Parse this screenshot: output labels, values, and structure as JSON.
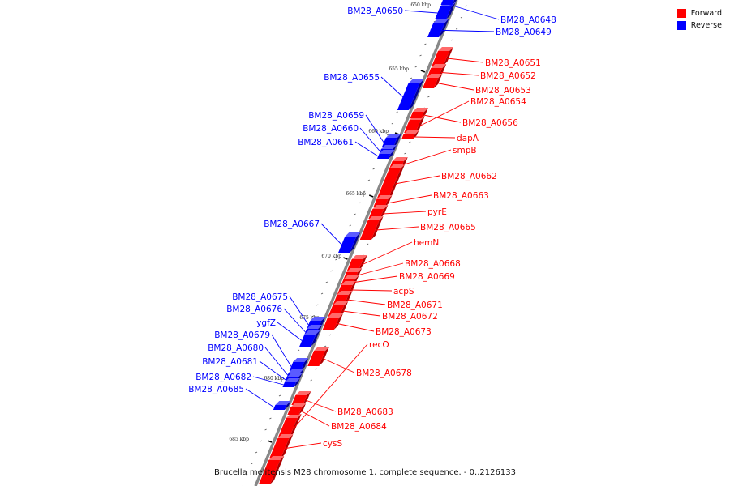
{
  "caption": "Brucella melitensis M28 chromosome 1, complete sequence. - 0..2126133",
  "legend": [
    {
      "label": "Forward",
      "color": "#ff0000"
    },
    {
      "label": "Reverse",
      "color": "#0000ff"
    }
  ],
  "colors": {
    "forward": "#ff0000",
    "reverse": "#0000ff",
    "backbone": "#888888"
  },
  "ticks": [
    {
      "kbp": 650,
      "label": "650 kbp"
    },
    {
      "kbp": 655,
      "label": "655 kbp"
    },
    {
      "kbp": 660,
      "label": "660 kbp"
    },
    {
      "kbp": 665,
      "label": "665 kbp"
    },
    {
      "kbp": 670,
      "label": "670 kbp"
    },
    {
      "kbp": 675,
      "label": "675 kbp"
    },
    {
      "kbp": 680,
      "label": "680 kbp"
    },
    {
      "kbp": 685,
      "label": "685 kbp"
    }
  ],
  "genes": [
    {
      "name": "BM28_A0650",
      "strand": "reverse"
    },
    {
      "name": "BM28_A0648",
      "strand": "reverse"
    },
    {
      "name": "BM28_A0649",
      "strand": "reverse"
    },
    {
      "name": "BM28_A0651",
      "strand": "forward"
    },
    {
      "name": "BM28_A0652",
      "strand": "forward"
    },
    {
      "name": "BM28_A0653",
      "strand": "forward"
    },
    {
      "name": "BM28_A0654",
      "strand": "forward"
    },
    {
      "name": "BM28_A0655",
      "strand": "reverse"
    },
    {
      "name": "BM28_A0656",
      "strand": "forward"
    },
    {
      "name": "BM28_A0659",
      "strand": "reverse"
    },
    {
      "name": "BM28_A0660",
      "strand": "reverse"
    },
    {
      "name": "BM28_A0661",
      "strand": "reverse"
    },
    {
      "name": "dapA",
      "strand": "forward"
    },
    {
      "name": "smpB",
      "strand": "forward"
    },
    {
      "name": "BM28_A0662",
      "strand": "forward"
    },
    {
      "name": "BM28_A0663",
      "strand": "forward"
    },
    {
      "name": "pyrE",
      "strand": "forward"
    },
    {
      "name": "BM28_A0665",
      "strand": "forward"
    },
    {
      "name": "BM28_A0667",
      "strand": "reverse"
    },
    {
      "name": "hemN",
      "strand": "forward"
    },
    {
      "name": "BM28_A0668",
      "strand": "forward"
    },
    {
      "name": "BM28_A0669",
      "strand": "forward"
    },
    {
      "name": "acpS",
      "strand": "forward"
    },
    {
      "name": "BM28_A0675",
      "strand": "reverse"
    },
    {
      "name": "BM28_A0671",
      "strand": "forward"
    },
    {
      "name": "BM28_A0676",
      "strand": "reverse"
    },
    {
      "name": "BM28_A0672",
      "strand": "forward"
    },
    {
      "name": "ygfZ",
      "strand": "reverse"
    },
    {
      "name": "BM28_A0673",
      "strand": "forward"
    },
    {
      "name": "BM28_A0679",
      "strand": "reverse"
    },
    {
      "name": "recO",
      "strand": "forward"
    },
    {
      "name": "BM28_A0680",
      "strand": "reverse"
    },
    {
      "name": "BM28_A0681",
      "strand": "reverse"
    },
    {
      "name": "BM28_A0678",
      "strand": "forward"
    },
    {
      "name": "BM28_A0682",
      "strand": "reverse"
    },
    {
      "name": "BM28_A0685",
      "strand": "reverse"
    },
    {
      "name": "BM28_A0683",
      "strand": "forward"
    },
    {
      "name": "BM28_A0684",
      "strand": "forward"
    },
    {
      "name": "cysS",
      "strand": "forward"
    }
  ]
}
